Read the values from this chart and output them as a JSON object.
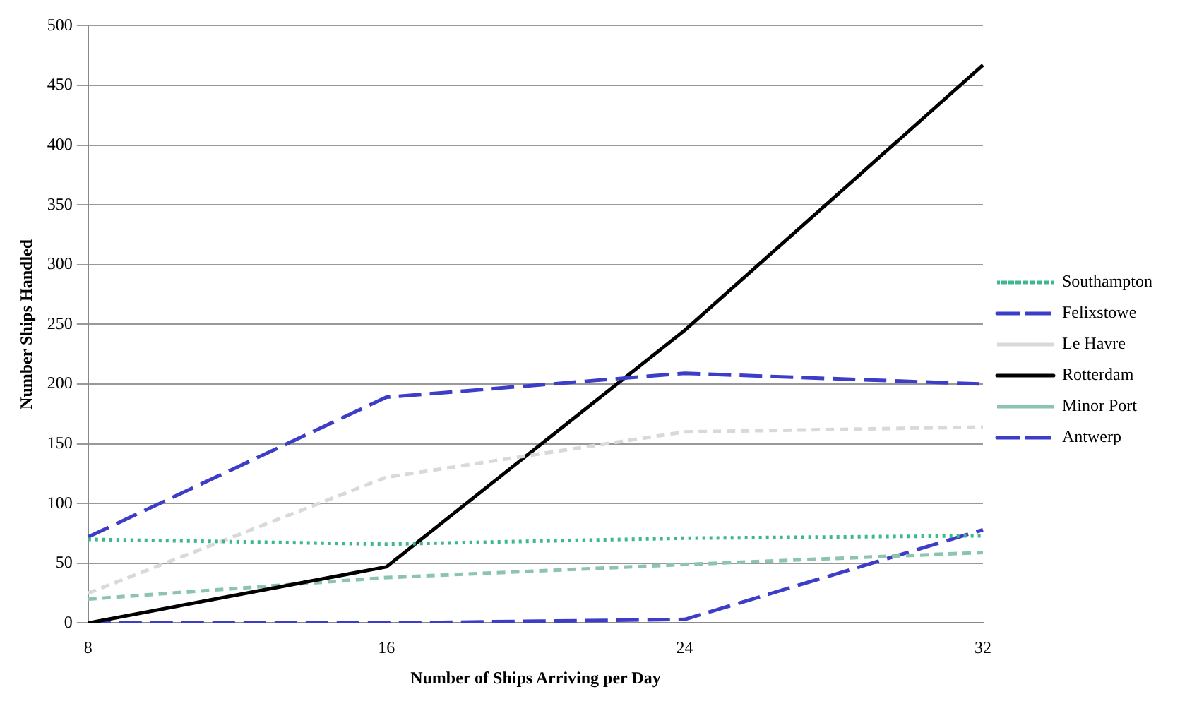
{
  "chart_data": {
    "type": "line",
    "xlabel": "Number of Ships Arriving per Day",
    "ylabel": "Number Ships Handled",
    "categories": [
      "8",
      "16",
      "24",
      "32"
    ],
    "series": [
      {
        "name": "Southampton",
        "color": "#3cb88a",
        "line_style": "dotted",
        "values": [
          70,
          66,
          71,
          73
        ]
      },
      {
        "name": "Felixstowe",
        "color": "#3d3dc8",
        "line_style": "dashed",
        "values": [
          72,
          189,
          209,
          200
        ]
      },
      {
        "name": "Le Havre",
        "color": "#d9d9d9",
        "line_style": "dashed",
        "values": [
          25,
          122,
          160,
          164
        ]
      },
      {
        "name": "Rotterdam",
        "color": "#000000",
        "line_style": "solid",
        "values": [
          0,
          47,
          245,
          467
        ]
      },
      {
        "name": "Minor Port",
        "color": "#8cc4b0",
        "line_style": "dashed",
        "values": [
          20,
          38,
          49,
          59
        ]
      },
      {
        "name": "Antwerp",
        "color": "#3d3dc8",
        "line_style": "dashed",
        "values": [
          0,
          0,
          3,
          78
        ]
      }
    ],
    "ylim": [
      0,
      500
    ],
    "yticks": [
      0,
      50,
      100,
      150,
      200,
      250,
      300,
      350,
      400,
      450,
      500
    ],
    "grid": "y",
    "legend": "right",
    "marker": "none"
  }
}
